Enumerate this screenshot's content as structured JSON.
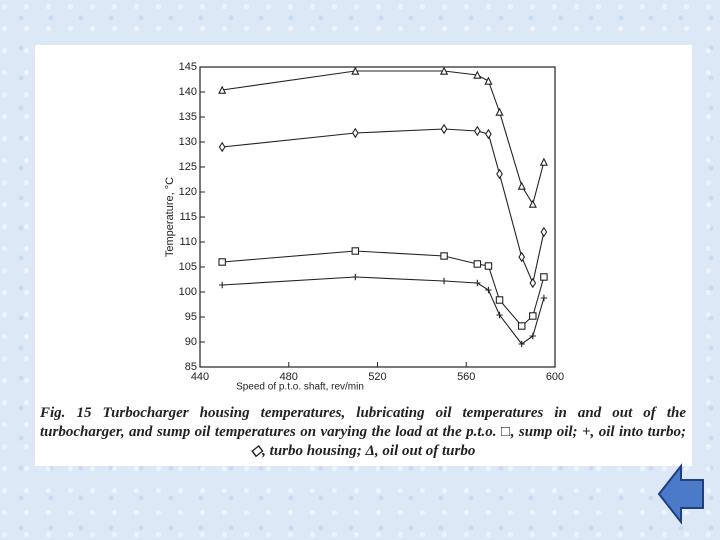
{
  "chart_data": {
    "type": "line",
    "ylabel": "Temperature, °C",
    "xlabel": "Speed of p.t.o. shaft, rev/min",
    "caption": "Fig. 15 Turbocharger housing temperatures, lubricating oil temperatures in and out of the turbocharger, and sump oil temperatures on varying the load at the p.t.o. □, sump oil; +, oil into turbo; ◇, turbo housing; Δ, oil out of turbo",
    "x": [
      450,
      510,
      550,
      565,
      570,
      575,
      585,
      590,
      595
    ],
    "xlim": [
      440,
      600
    ],
    "xticks": [
      440,
      480,
      520,
      560,
      600
    ],
    "ylim": [
      85,
      145
    ],
    "yticks": [
      85,
      90,
      95,
      100,
      105,
      110,
      115,
      120,
      125,
      130,
      135,
      140,
      145
    ],
    "color": "#222222",
    "series": [
      {
        "marker": "triangle",
        "values": [
          140.4,
          144.2,
          144.2,
          143.4,
          142.2,
          136,
          121.2,
          117.6,
          126
        ]
      },
      {
        "marker": "diamond",
        "values": [
          129,
          131.8,
          132.6,
          132.2,
          131.6,
          123.6,
          107,
          101.8,
          112
        ]
      },
      {
        "marker": "square",
        "values": [
          106,
          108.2,
          107.2,
          105.6,
          105.2,
          98.4,
          93.2,
          95.2,
          103
        ]
      },
      {
        "marker": "plus",
        "values": [
          101.4,
          103,
          102.2,
          101.8,
          100.4,
          95.4,
          89.6,
          91.2,
          98.8
        ]
      }
    ]
  }
}
